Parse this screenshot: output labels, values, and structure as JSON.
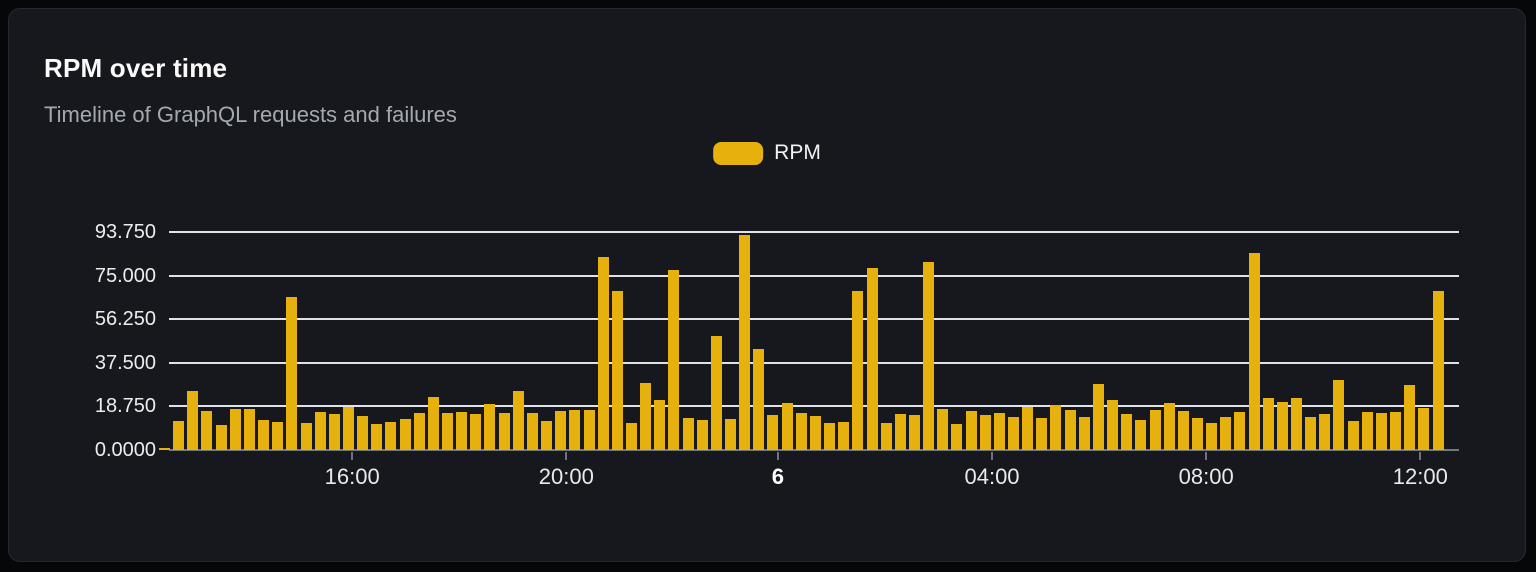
{
  "header": {
    "title": "RPM over time",
    "subtitle": "Timeline of GraphQL requests and failures"
  },
  "legend": {
    "label": "RPM",
    "color": "#e6b10c"
  },
  "colors": {
    "background": "#060708",
    "card": "#16181d",
    "card_border": "#26282e",
    "bar": "#e6b10c",
    "gridline": "#dfe3e9",
    "axis_line": "#74777e",
    "tick_mark": "#6f727a",
    "title_text": "#fafafa",
    "subtitle_text": "#a3a9b1",
    "axis_text": "#eceded"
  },
  "chart_data": {
    "type": "bar",
    "title": "RPM over time",
    "subtitle": "Timeline of GraphQL requests and failures",
    "legend_position": "top-center",
    "grid": true,
    "ylim": [
      0,
      93.75
    ],
    "y_ticks": [
      {
        "value": 0,
        "label": "0.0000"
      },
      {
        "value": 18.75,
        "label": "18.750"
      },
      {
        "value": 37.5,
        "label": "37.500"
      },
      {
        "value": 56.25,
        "label": "56.250"
      },
      {
        "value": 75,
        "label": "75.000"
      },
      {
        "value": 93.75,
        "label": "93.750"
      }
    ],
    "x_ticks": [
      {
        "label": "16:00",
        "position_pct": 14.2,
        "bold": false
      },
      {
        "label": "20:00",
        "position_pct": 30.8,
        "bold": false
      },
      {
        "label": "6",
        "position_pct": 47.2,
        "bold": true
      },
      {
        "label": "04:00",
        "position_pct": 63.8,
        "bold": false
      },
      {
        "label": "08:00",
        "position_pct": 80.4,
        "bold": false
      },
      {
        "label": "12:00",
        "position_pct": 97.0,
        "bold": false
      }
    ],
    "series": [
      {
        "name": "RPM",
        "color": "#e6b10c",
        "values": [
          1,
          12.5,
          25.4,
          16.8,
          10.9,
          17.8,
          17.8,
          13,
          12.2,
          65.6,
          11.6,
          16.5,
          15.4,
          18.5,
          14.7,
          11.2,
          12,
          13.4,
          15.8,
          22.9,
          16.1,
          16.3,
          15.4,
          20,
          16,
          25.5,
          16,
          12.5,
          16.7,
          17,
          17,
          82.9,
          68.4,
          11.8,
          28.7,
          21.6,
          77.3,
          13.7,
          13,
          49,
          13.3,
          92.4,
          43.3,
          15.1,
          20.2,
          16,
          14.7,
          11.7,
          12,
          68.2,
          78.2,
          11.7,
          15.6,
          15,
          81,
          17.7,
          11.4,
          16.6,
          14.9,
          15.9,
          14.4,
          18.3,
          13.8,
          19.2,
          17.4,
          14.4,
          28.6,
          21.3,
          15.6,
          13.1,
          17,
          20.3,
          16.6,
          13.7,
          11.8,
          14.1,
          16.4,
          84.8,
          22.5,
          20.6,
          22.5,
          14,
          15.6,
          30.3,
          12.5,
          16.4,
          15.9,
          16.2,
          28,
          18,
          68.2
        ]
      }
    ]
  }
}
